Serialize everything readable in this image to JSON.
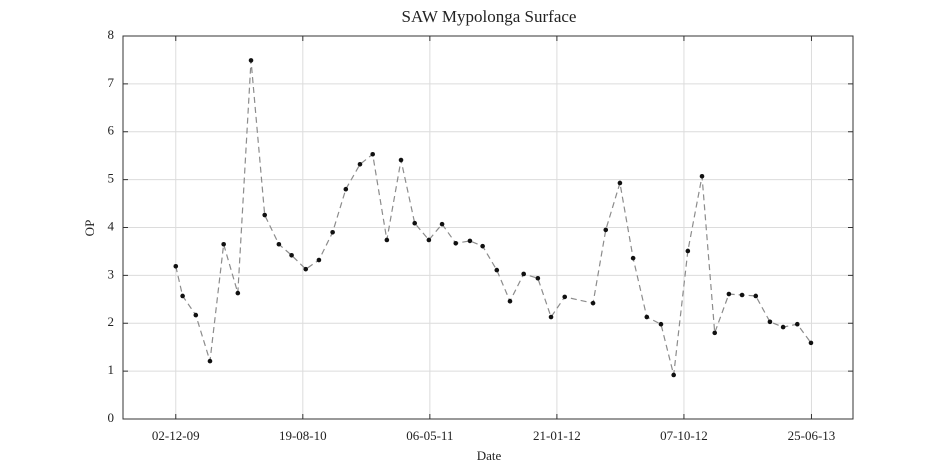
{
  "chart_data": {
    "type": "line",
    "title": "SAW Mypolonga Surface",
    "x_label": "Date",
    "y_label": "OP",
    "x": [
      "02-12-09",
      "16-12-09",
      "12-01-10",
      "10-02-10",
      "10-03-10",
      "08-04-10",
      "05-05-10",
      "02-06-10",
      "01-07-10",
      "27-07-10",
      "25-08-10",
      "21-09-10",
      "19-10-10",
      "15-11-10",
      "14-12-10",
      "09-01-11",
      "07-02-11",
      "08-03-11",
      "05-04-11",
      "04-05-11",
      "31-05-11",
      "28-06-11",
      "27-07-11",
      "22-08-11",
      "20-09-11",
      "17-10-11",
      "14-11-11",
      "13-12-11",
      "09-01-12",
      "06-02-12",
      "04-04-12",
      "30-04-12",
      "29-05-12",
      "25-06-12",
      "23-07-12",
      "21-08-12",
      "16-09-12",
      "15-10-12",
      "13-11-12",
      "09-12-12",
      "07-01-13",
      "03-02-13",
      "03-03-13",
      "01-04-13",
      "28-04-13",
      "27-05-13",
      "24-06-13"
    ],
    "values": [
      3.19,
      2.57,
      2.17,
      1.21,
      3.65,
      2.63,
      7.49,
      4.26,
      3.65,
      3.42,
      3.13,
      3.32,
      3.9,
      4.8,
      5.32,
      5.53,
      3.74,
      5.41,
      4.09,
      3.74,
      4.07,
      3.67,
      3.72,
      3.61,
      3.11,
      2.46,
      3.03,
      2.94,
      2.13,
      2.55,
      2.42,
      3.95,
      4.93,
      3.36,
      2.13,
      1.98,
      0.92,
      3.51,
      5.07,
      1.8,
      2.61,
      2.59,
      2.57,
      2.03,
      1.92,
      1.98,
      1.59
    ],
    "color": "#8c8c8c",
    "marker_color": "#111111",
    "xlim": [
      "16-08-09",
      "18-09-13"
    ],
    "xticks": [
      "02-12-09",
      "19-08-10",
      "06-05-11",
      "21-01-12",
      "07-10-12",
      "25-06-13"
    ],
    "ylim": [
      0,
      8
    ],
    "yticks": [
      0,
      1,
      2,
      3,
      4,
      5,
      6,
      7,
      8
    ],
    "grid": true
  }
}
